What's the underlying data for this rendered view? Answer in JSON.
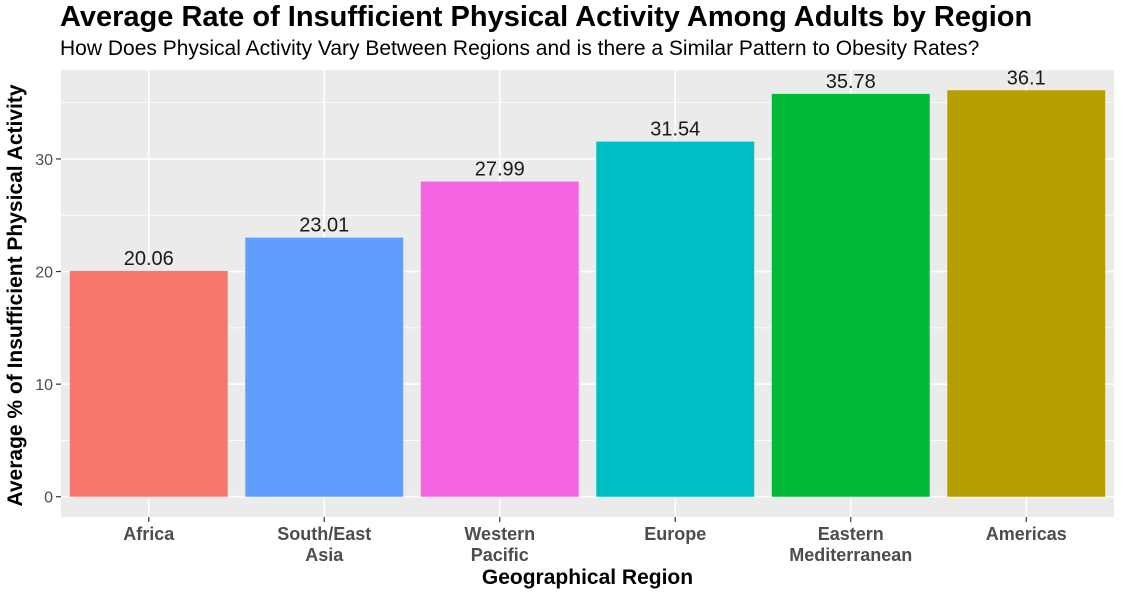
{
  "chart_data": {
    "type": "bar",
    "title": "Average Rate of Insufficient Physical Activity Among Adults by Region",
    "subtitle": "How Does Physical Activity Vary Between Regions and is there a Similar Pattern to Obesity Rates?",
    "xlabel": "Geographical Region",
    "ylabel": "Average % of Insufficient Physical Activity",
    "categories": [
      {
        "lines": [
          "Africa"
        ]
      },
      {
        "lines": [
          "South/East",
          "Asia"
        ]
      },
      {
        "lines": [
          "Western",
          "Pacific"
        ]
      },
      {
        "lines": [
          "Europe"
        ]
      },
      {
        "lines": [
          "Eastern",
          "Mediterranean"
        ]
      },
      {
        "lines": [
          "Americas"
        ]
      }
    ],
    "values": [
      20.06,
      23.01,
      27.99,
      31.54,
      35.78,
      36.1
    ],
    "data_labels": [
      "20.06",
      "23.01",
      "27.99",
      "31.54",
      "35.78",
      "36.1"
    ],
    "colors": [
      "#F8766D",
      "#619CFF",
      "#F564E3",
      "#00BFC4",
      "#00BA38",
      "#B79F00"
    ],
    "yticks": [
      0,
      10,
      20,
      30
    ],
    "ylim": [
      -1.8,
      37.9
    ],
    "grid": true,
    "panel_background": "#EBEBEB",
    "legend": "none"
  }
}
